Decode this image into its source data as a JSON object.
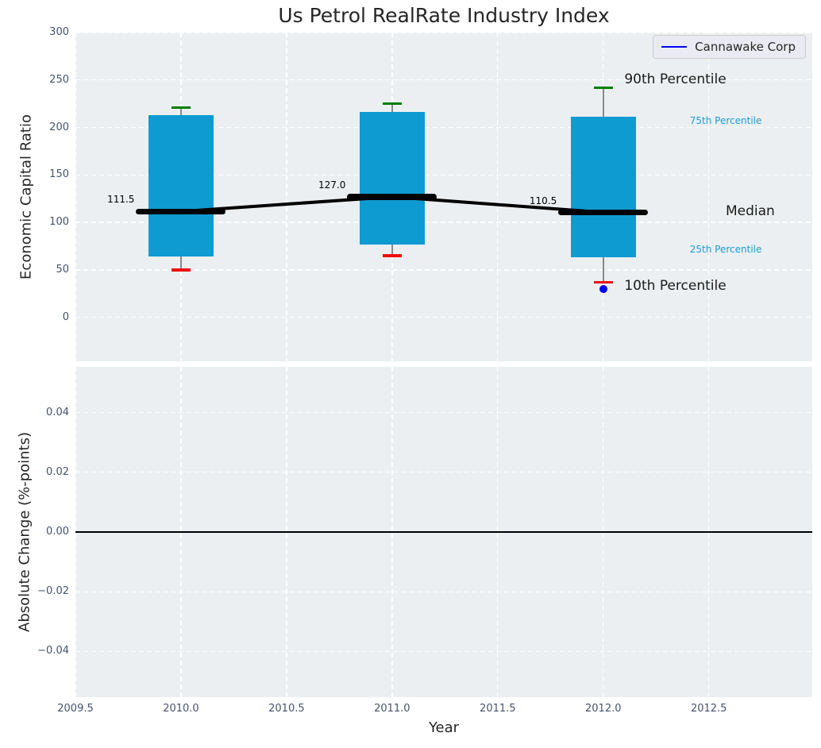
{
  "figure": {
    "title": "Us Petrol RealRate Industry Index",
    "background": "#ffffff",
    "axes_background": "#ECEFF1",
    "grid_color": "#ffffff",
    "tick_color": "#44536B"
  },
  "legend": {
    "label": "Cannawake Corp",
    "line_color": "#0000ee"
  },
  "chart_data": [
    {
      "type": "boxplot-timeseries",
      "title": "Us Petrol RealRate Industry Index",
      "xlabel": "Year",
      "ylabel": "Economic Capital Ratio",
      "x": [
        2010.0,
        2011.0,
        2012.0
      ],
      "series": [
        {
          "name": "90th Percentile",
          "role": "p90",
          "values": [
            221,
            225,
            242
          ],
          "color": "#027f02"
        },
        {
          "name": "75th Percentile",
          "role": "p75",
          "values": [
            213,
            216,
            211
          ],
          "color": "#0E9BD2"
        },
        {
          "name": "Median",
          "role": "median",
          "values": [
            111.5,
            127.0,
            110.5
          ],
          "color": "#000000"
        },
        {
          "name": "25th Percentile",
          "role": "p25",
          "values": [
            64,
            77,
            63
          ],
          "color": "#0E9BD2"
        },
        {
          "name": "10th Percentile",
          "role": "p10",
          "values": [
            50,
            65,
            37
          ],
          "color": "#ed0e0e"
        },
        {
          "name": "Cannawake Corp",
          "role": "company",
          "values": [
            null,
            null,
            30
          ],
          "color": "#0000ee"
        }
      ],
      "median_point_labels": [
        "111.5",
        "127.0",
        "110.5"
      ],
      "right_labels": [
        {
          "text": "90th Percentile",
          "x": 2012.1,
          "y": 251,
          "style": "big"
        },
        {
          "text": "75th Percentile",
          "x": 2012.41,
          "y": 207,
          "style": "small"
        },
        {
          "text": "Median",
          "x": 2012.58,
          "y": 112,
          "style": "big"
        },
        {
          "text": "25th Percentile",
          "x": 2012.41,
          "y": 72,
          "style": "small"
        },
        {
          "text": "10th Percentile",
          "x": 2012.1,
          "y": 33,
          "style": "big"
        }
      ],
      "xlim": [
        2009.5,
        2012.99
      ],
      "ylim": [
        -46.3,
        300
      ],
      "yticks": [
        {
          "v": 300,
          "label": "300"
        },
        {
          "v": 250,
          "label": "250"
        },
        {
          "v": 200,
          "label": "200"
        },
        {
          "v": 150,
          "label": "150"
        },
        {
          "v": 100,
          "label": "100"
        },
        {
          "v": 50,
          "label": "50"
        },
        {
          "v": 0,
          "label": "0"
        }
      ],
      "xticks": [
        {
          "v": 2009.5,
          "label": "2009.5"
        },
        {
          "v": 2010.0,
          "label": "2010.0"
        },
        {
          "v": 2010.5,
          "label": "2010.5"
        },
        {
          "v": 2011.0,
          "label": "2011.0"
        },
        {
          "v": 2011.5,
          "label": "2011.5"
        },
        {
          "v": 2012.0,
          "label": "2012.0"
        },
        {
          "v": 2012.5,
          "label": "2012.5"
        }
      ],
      "legend_position": "upper right",
      "grid": true
    },
    {
      "type": "line",
      "xlabel": "Year",
      "ylabel": "Absolute Change (%-points)",
      "zero_line": 0.0,
      "series": [],
      "xlim": [
        2009.5,
        2012.99
      ],
      "ylim": [
        -0.0553,
        0.0553
      ],
      "yticks": [
        {
          "v": 0.04,
          "label": "0.04"
        },
        {
          "v": 0.02,
          "label": "0.02"
        },
        {
          "v": 0.0,
          "label": "0.00"
        },
        {
          "v": -0.02,
          "label": "−0.02"
        },
        {
          "v": -0.04,
          "label": "−0.04"
        }
      ],
      "xticks": [
        {
          "v": 2009.5,
          "label": "2009.5"
        },
        {
          "v": 2010.0,
          "label": "2010.0"
        },
        {
          "v": 2010.5,
          "label": "2010.5"
        },
        {
          "v": 2011.0,
          "label": "2011.0"
        },
        {
          "v": 2011.5,
          "label": "2011.5"
        },
        {
          "v": 2012.0,
          "label": "2012.0"
        },
        {
          "v": 2012.5,
          "label": "2012.5"
        }
      ],
      "grid": true
    }
  ]
}
